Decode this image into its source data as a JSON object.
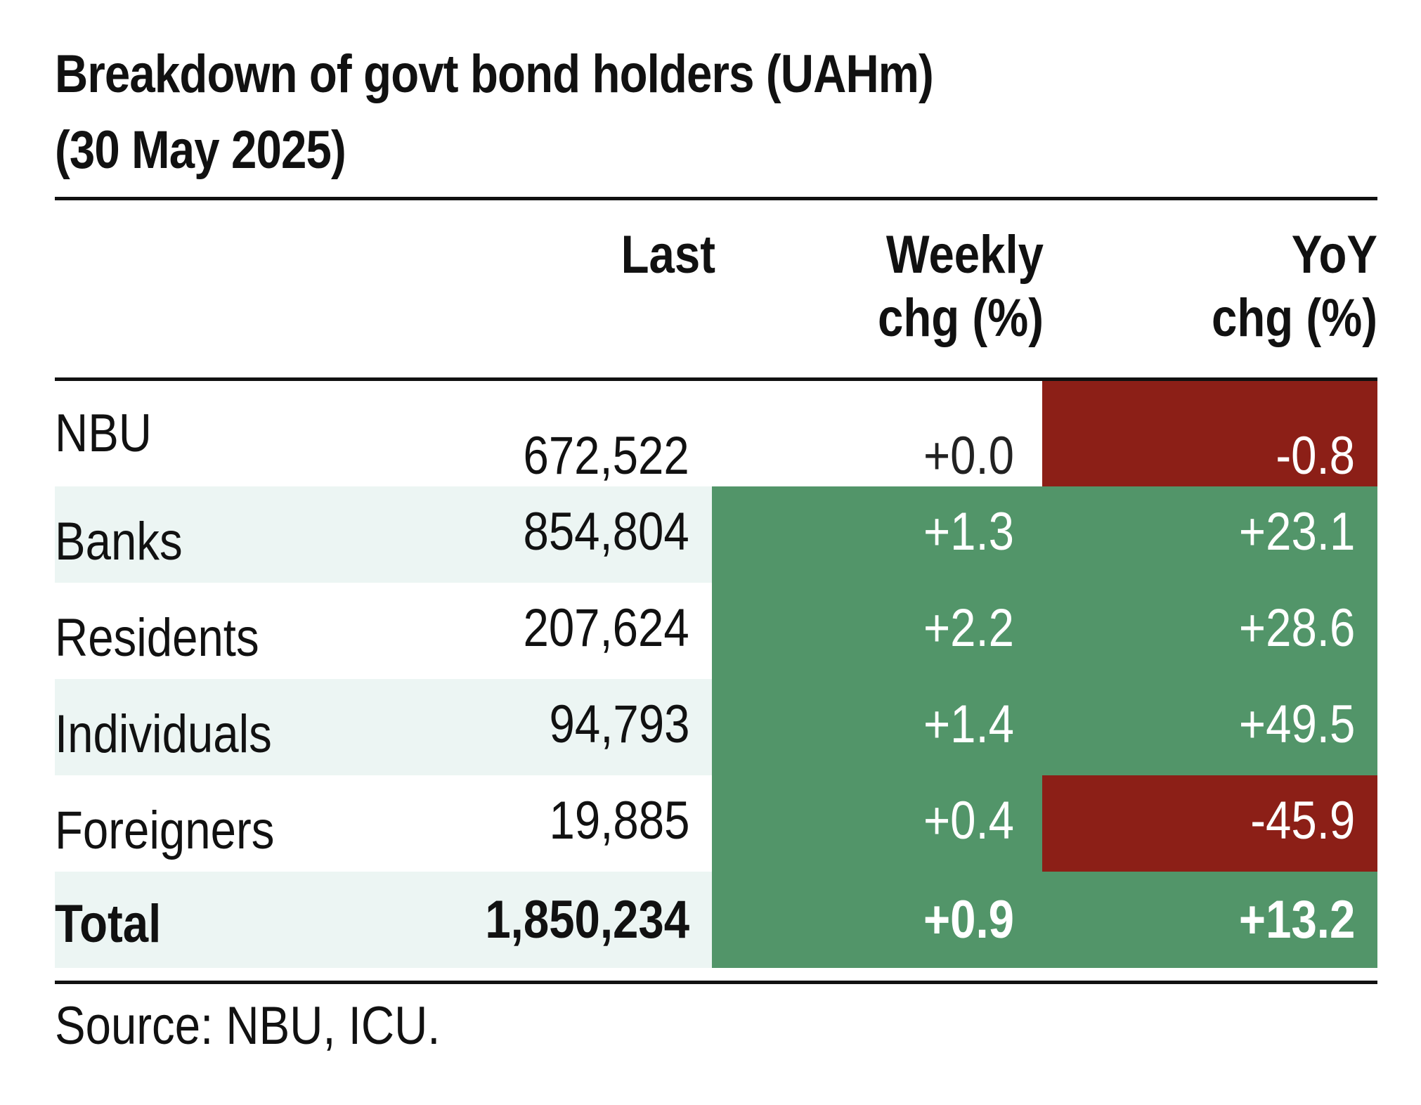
{
  "chart_data": {
    "type": "table",
    "title": "Breakdown of govt bond holders (UAHm) (30 May 2025)",
    "title_lines": [
      "Breakdown of govt bond holders (UAHm)",
      "(30 May 2025)"
    ],
    "columns": [
      {
        "key": "last",
        "lines": [
          "Last"
        ]
      },
      {
        "key": "weekly",
        "lines": [
          "Weekly",
          "chg (%)"
        ]
      },
      {
        "key": "yoy",
        "lines": [
          "YoY",
          "chg (%)"
        ]
      }
    ],
    "rows": [
      {
        "name": "NBU",
        "last": "672,522",
        "weekly": "+0.0",
        "yoy": "-0.8",
        "weekly_value": 0.0,
        "yoy_value": -0.8
      },
      {
        "name": "Banks",
        "last": "854,804",
        "weekly": "+1.3",
        "yoy": "+23.1",
        "weekly_value": 1.3,
        "yoy_value": 23.1
      },
      {
        "name": "Residents",
        "last": "207,624",
        "weekly": "+2.2",
        "yoy": "+28.6",
        "weekly_value": 2.2,
        "yoy_value": 28.6
      },
      {
        "name": "Individuals",
        "last": "94,793",
        "weekly": "+1.4",
        "yoy": "+49.5",
        "weekly_value": 1.4,
        "yoy_value": 49.5
      },
      {
        "name": "Foreigners",
        "last": "19,885",
        "weekly": "+0.4",
        "yoy": "-45.9",
        "weekly_value": 0.4,
        "yoy_value": -45.9
      },
      {
        "name": "Total",
        "last": "1,850,234",
        "weekly": "+0.9",
        "yoy": "+13.2",
        "weekly_value": 0.9,
        "yoy_value": 13.2
      }
    ],
    "source": "Source: NBU, ICU."
  },
  "colors": {
    "positive_fill": "#529569",
    "negative_fill": "#8c1f17",
    "stripe_fill": "#ecf5f3",
    "text": "#111111",
    "text_on_fill": "#ffffff",
    "text_on_zero": "#222222"
  }
}
